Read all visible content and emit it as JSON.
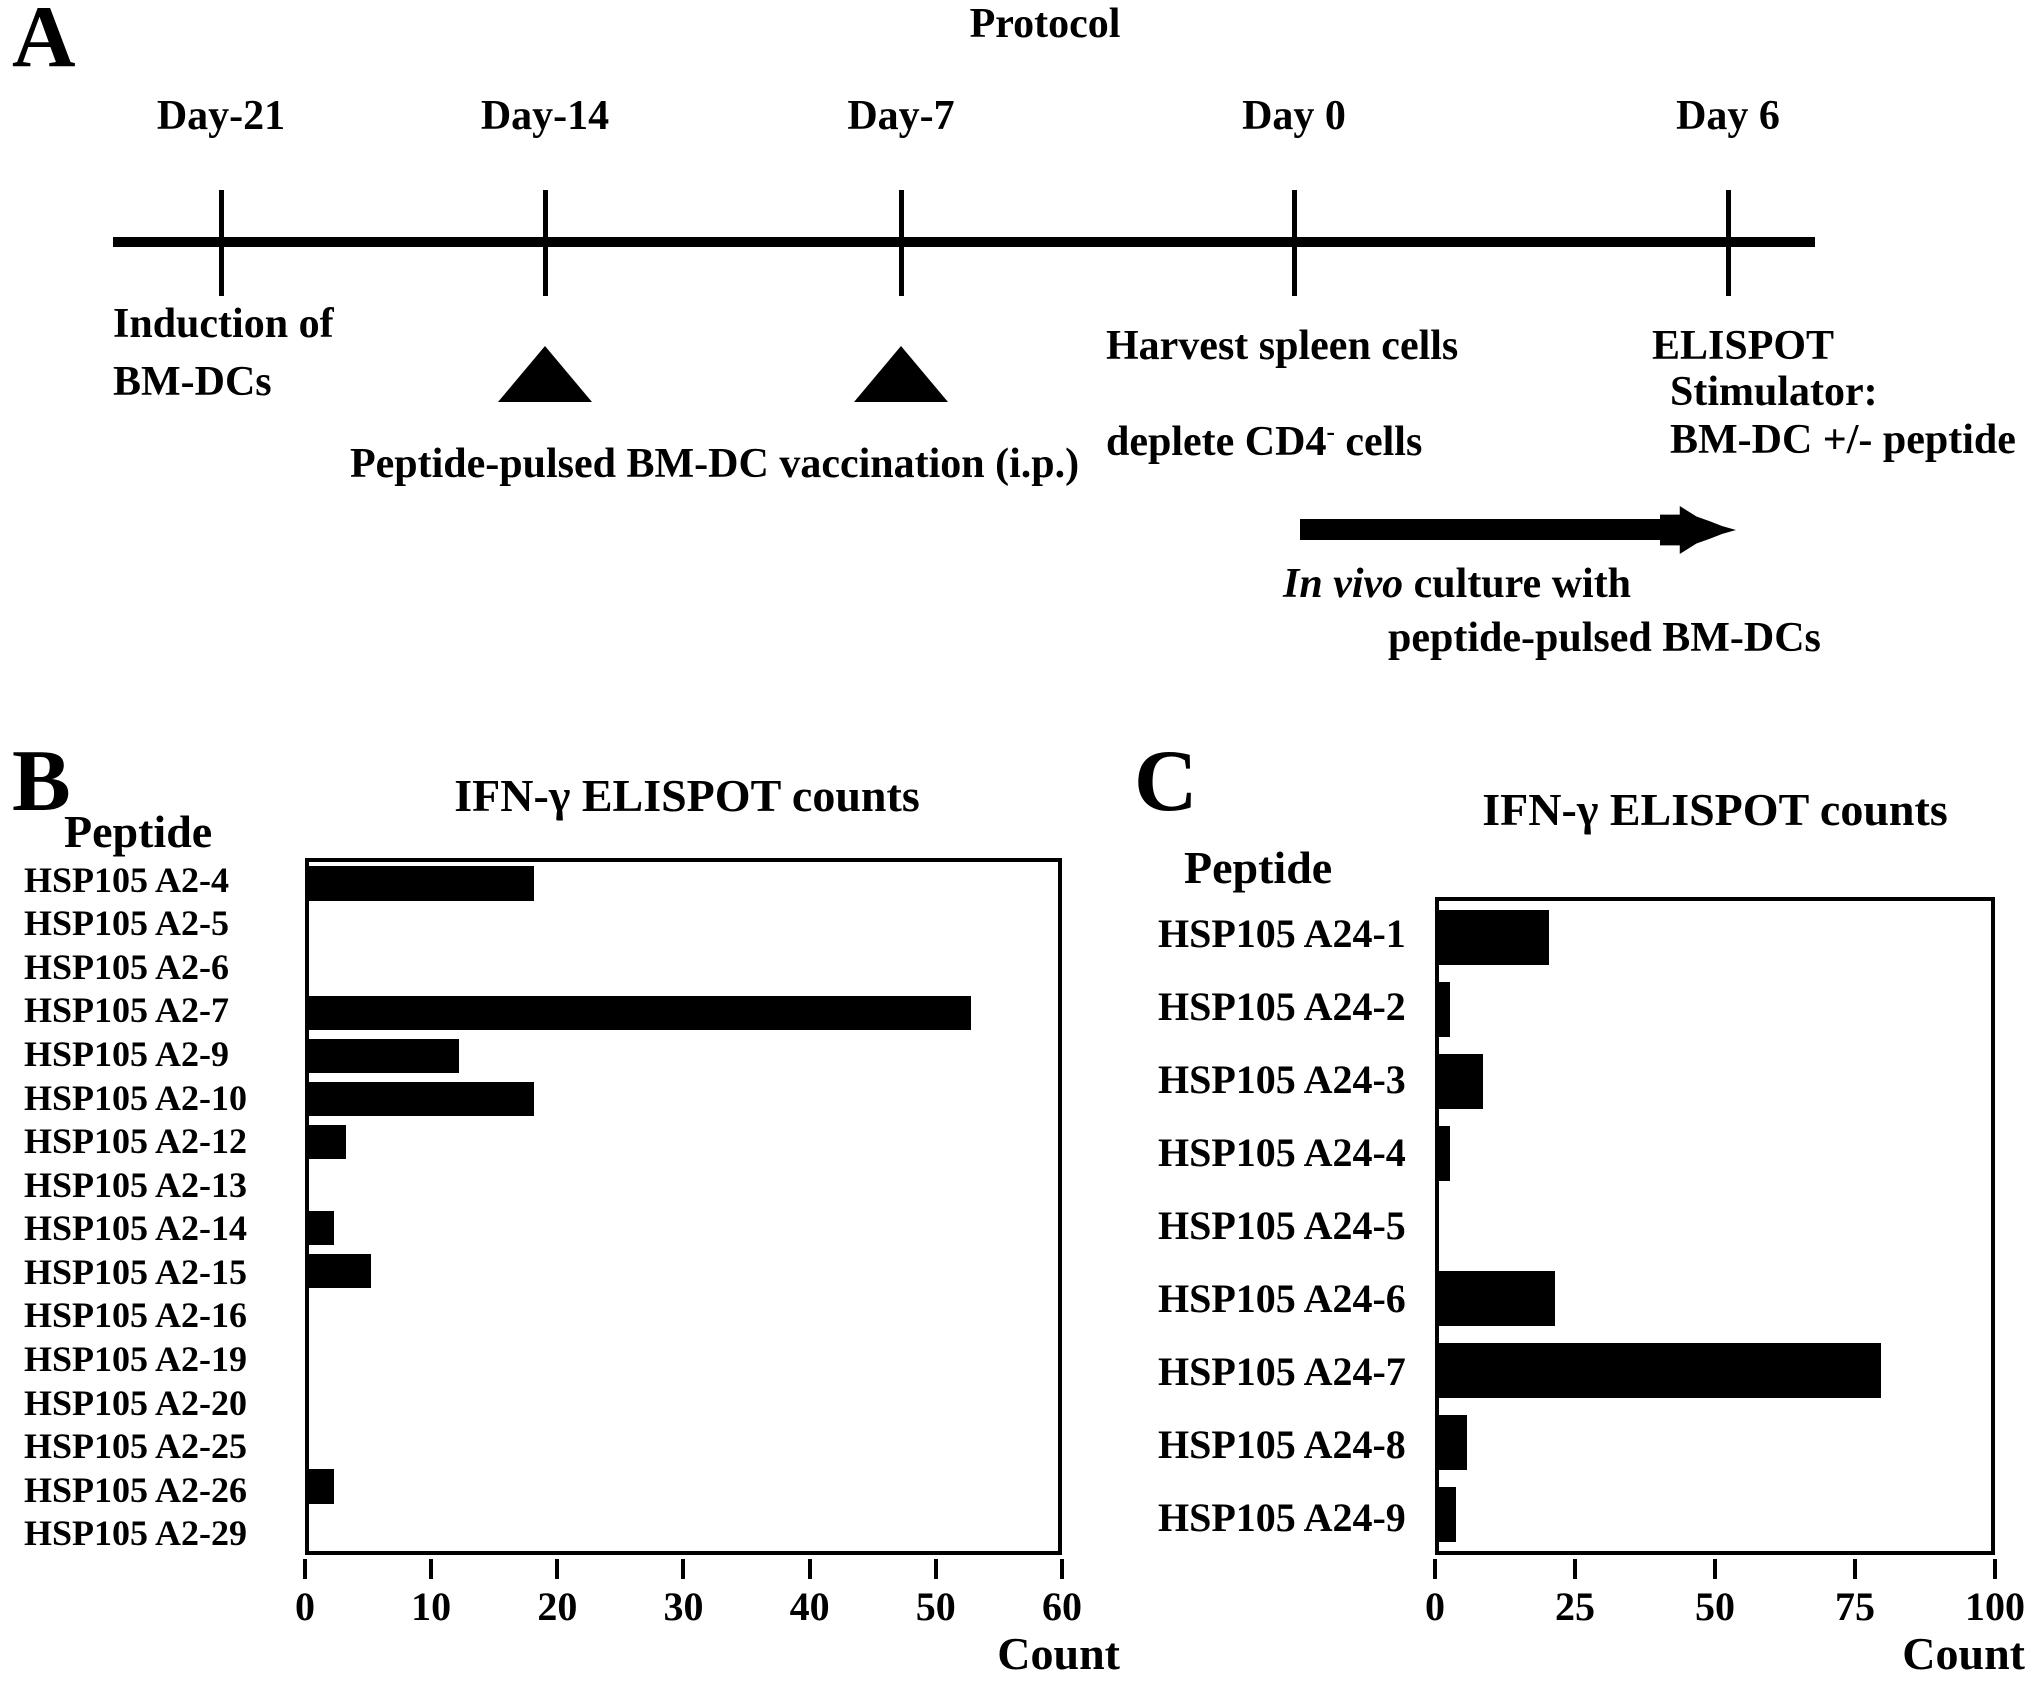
{
  "panel_a": {
    "label": "A",
    "title": "Protocol",
    "timeline_days": [
      "Day-21",
      "Day-14",
      "Day-7",
      "Day 0",
      "Day 6"
    ],
    "induction_line1": "Induction of",
    "induction_line2": "BM-DCs",
    "vaccination": "Peptide-pulsed BM-DC vaccination (i.p.)",
    "harvest_line1": "Harvest spleen cells",
    "harvest_line2_main": "deplete CD4",
    "harvest_line2_sup": "-",
    "harvest_line2_tail": " cells",
    "elispot": "ELISPOT",
    "stimulator_line1": "Stimulator:",
    "stimulator_line2": "BM-DC +/- peptide",
    "invivo_italic": "In vivo",
    "invivo_tail": " culture with",
    "invivo_line2": "peptide-pulsed BM-DCs"
  },
  "panel_b": {
    "label": "B"
  },
  "panel_c": {
    "label": "C"
  },
  "chart_data": [
    {
      "type": "bar",
      "panel": "B",
      "orientation": "horizontal",
      "title": "IFN-γ ELISPOT counts",
      "row_header": "Peptide",
      "xlabel": "Count",
      "categories": [
        "HSP105 A2-4",
        "HSP105 A2-5",
        "HSP105 A2-6",
        "HSP105 A2-7",
        "HSP105 A2-9",
        "HSP105 A2-10",
        "HSP105 A2-12",
        "HSP105 A2-13",
        "HSP105 A2-14",
        "HSP105 A2-15",
        "HSP105 A2-16",
        "HSP105 A2-19",
        "HSP105 A2-20",
        "HSP105 A2-25",
        "HSP105 A2-26",
        "HSP105 A2-29"
      ],
      "values": [
        18,
        0,
        0,
        53,
        12,
        18,
        3,
        0,
        2,
        5,
        0,
        0,
        0,
        0,
        2,
        0
      ],
      "xlim": [
        0,
        60
      ],
      "xticks": [
        0,
        10,
        20,
        30,
        40,
        50,
        60
      ],
      "bar_color": "#000000",
      "grid": false,
      "legend": "none"
    },
    {
      "type": "bar",
      "panel": "C",
      "orientation": "horizontal",
      "title": "IFN-γ ELISPOT counts",
      "row_header": "Peptide",
      "xlabel": "Count",
      "categories": [
        "HSP105 A24-1",
        "HSP105 A24-2",
        "HSP105 A24-3",
        "HSP105 A24-4",
        "HSP105 A24-5",
        "HSP105 A24-6",
        "HSP105 A24-7",
        "HSP105 A24-8",
        "HSP105 A24-9"
      ],
      "values": [
        20,
        2,
        8,
        2,
        0,
        21,
        80,
        5,
        3
      ],
      "xlim": [
        0,
        100
      ],
      "xticks": [
        0,
        25,
        50,
        75,
        100
      ],
      "bar_color": "#000000",
      "grid": false,
      "legend": "none"
    }
  ]
}
